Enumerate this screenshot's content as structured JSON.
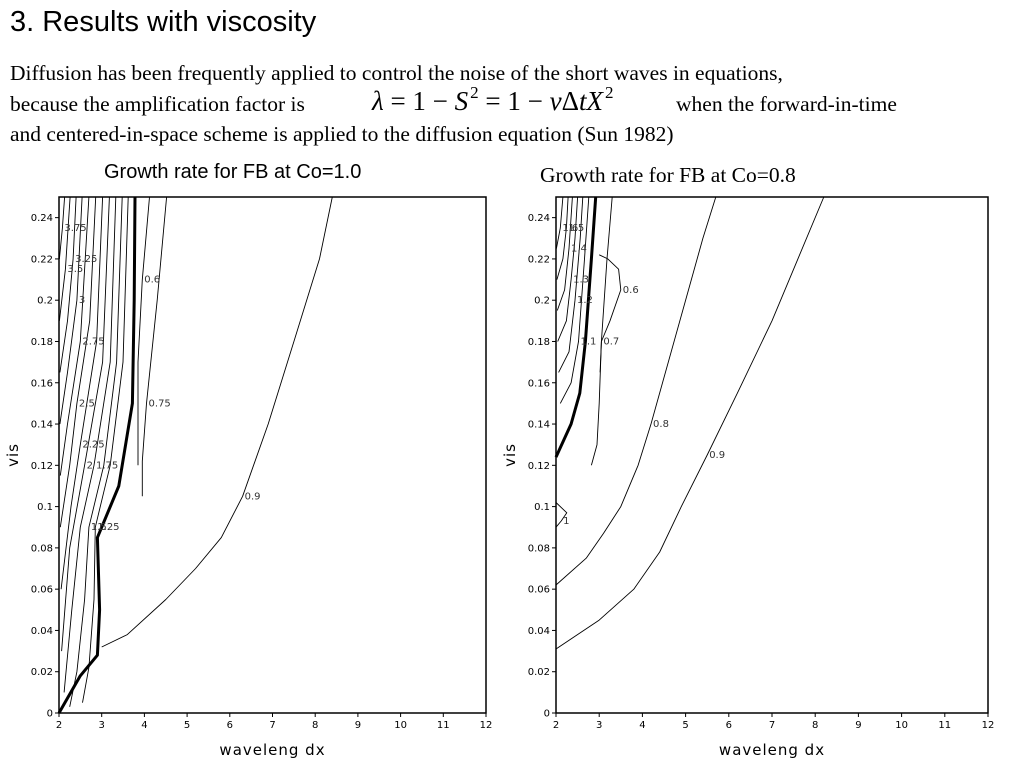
{
  "slide": {
    "title": "3. Results with viscosity",
    "line1": "Diffusion has been frequently applied to control the noise of the short waves in equations,",
    "line2_pre": "because the amplification factor is",
    "line2_post": "when the forward-in-time",
    "line3": "and centered-in-space scheme is applied to the diffusion equation (Sun 1982)",
    "formula": {
      "lambda": "λ",
      "eq1": " = 1 − ",
      "S": "S",
      "sq1": "2",
      "eq2": " = 1 − ",
      "nu": "ν",
      "delta": "Δ",
      "tX": "tX",
      "sq2": "2"
    }
  },
  "chart_data": [
    {
      "type": "contour",
      "title": "Growth rate for FB at Co=1.0",
      "xlabel": "waveleng  dx",
      "ylabel": "vis",
      "xlim": [
        2,
        12
      ],
      "ylim": [
        0,
        0.25
      ],
      "xticks": [
        2,
        3,
        4,
        5,
        6,
        7,
        8,
        9,
        10,
        11,
        12
      ],
      "yticks": [
        0,
        0.02,
        0.04,
        0.06,
        0.08,
        0.1,
        0.12,
        0.14,
        0.16,
        0.18,
        0.2,
        0.22,
        0.24
      ],
      "contours": [
        {
          "label": "",
          "bold": true,
          "points": [
            [
              2,
              0
            ],
            [
              2.5,
              0.018
            ],
            [
              2.9,
              0.028
            ],
            [
              2.95,
              0.05
            ],
            [
              2.9,
              0.085
            ],
            [
              3.4,
              0.11
            ],
            [
              3.72,
              0.15
            ],
            [
              3.76,
              0.2
            ],
            [
              3.78,
              0.25
            ]
          ]
        },
        {
          "label": "0.9",
          "bold": false,
          "points": [
            [
              3.0,
              0.032
            ],
            [
              3.6,
              0.038
            ],
            [
              4.5,
              0.055
            ],
            [
              5.2,
              0.07
            ],
            [
              5.8,
              0.085
            ],
            [
              6.3,
              0.105
            ],
            [
              6.9,
              0.14
            ],
            [
              7.5,
              0.18
            ],
            [
              8.1,
              0.22
            ],
            [
              8.4,
              0.25
            ]
          ]
        },
        {
          "label": "0.75",
          "bold": false,
          "points": [
            [
              3.95,
              0.105
            ],
            [
              3.95,
              0.122
            ],
            [
              4.05,
              0.15
            ],
            [
              4.3,
              0.2
            ],
            [
              4.52,
              0.25
            ]
          ]
        },
        {
          "label": "0.6",
          "bold": false,
          "points": [
            [
              3.85,
              0.12
            ],
            [
              3.85,
              0.17
            ],
            [
              3.95,
              0.21
            ],
            [
              4.12,
              0.25
            ]
          ]
        },
        {
          "label": "1.25",
          "bold": false,
          "points": [
            [
              2.55,
              0.005
            ],
            [
              2.7,
              0.022
            ],
            [
              2.82,
              0.055
            ],
            [
              2.85,
              0.09
            ],
            [
              3.2,
              0.12
            ],
            [
              3.5,
              0.17
            ],
            [
              3.62,
              0.25
            ]
          ]
        },
        {
          "label": "1.5",
          "bold": false,
          "points": [
            [
              2.25,
              0.003
            ],
            [
              2.42,
              0.02
            ],
            [
              2.6,
              0.055
            ],
            [
              2.7,
              0.09
            ],
            [
              3.05,
              0.12
            ],
            [
              3.35,
              0.17
            ],
            [
              3.48,
              0.25
            ]
          ]
        },
        {
          "label": "1.75",
          "bold": false,
          "points": [
            [
              2.12,
              0.01
            ],
            [
              2.3,
              0.05
            ],
            [
              2.5,
              0.09
            ],
            [
              2.82,
              0.12
            ],
            [
              3.2,
              0.17
            ],
            [
              3.33,
              0.25
            ]
          ]
        },
        {
          "label": "2",
          "bold": false,
          "points": [
            [
              2.06,
              0.03
            ],
            [
              2.25,
              0.08
            ],
            [
              2.6,
              0.12
            ],
            [
              3.02,
              0.17
            ],
            [
              3.18,
              0.25
            ]
          ]
        },
        {
          "label": "2.25",
          "bold": false,
          "points": [
            [
              2.05,
              0.06
            ],
            [
              2.28,
              0.1
            ],
            [
              2.5,
              0.13
            ],
            [
              2.88,
              0.18
            ],
            [
              3.02,
              0.25
            ]
          ]
        },
        {
          "label": "2.5",
          "bold": false,
          "points": [
            [
              2.03,
              0.09
            ],
            [
              2.25,
              0.12
            ],
            [
              2.42,
              0.15
            ],
            [
              2.72,
              0.19
            ],
            [
              2.86,
              0.25
            ]
          ]
        },
        {
          "label": "2.75",
          "bold": false,
          "points": [
            [
              2.03,
              0.115
            ],
            [
              2.2,
              0.14
            ],
            [
              2.5,
              0.18
            ],
            [
              2.7,
              0.25
            ]
          ]
        },
        {
          "label": "3",
          "bold": false,
          "points": [
            [
              2.02,
              0.14
            ],
            [
              2.2,
              0.165
            ],
            [
              2.42,
              0.2
            ],
            [
              2.54,
              0.25
            ]
          ]
        },
        {
          "label": "3.25",
          "bold": false,
          "points": [
            [
              2.02,
              0.165
            ],
            [
              2.2,
              0.19
            ],
            [
              2.33,
              0.22
            ],
            [
              2.4,
              0.25
            ]
          ]
        },
        {
          "label": "3.5",
          "bold": false,
          "points": [
            [
              2.01,
              0.19
            ],
            [
              2.15,
              0.215
            ],
            [
              2.26,
              0.25
            ]
          ]
        },
        {
          "label": "3.75",
          "bold": false,
          "points": [
            [
              2.01,
              0.22
            ],
            [
              2.08,
              0.235
            ],
            [
              2.13,
              0.25
            ]
          ]
        }
      ]
    },
    {
      "type": "contour",
      "title": "Growth rate for FB at Co=0.8",
      "xlabel": "waveleng  dx",
      "ylabel": "vis",
      "xlim": [
        2,
        12
      ],
      "ylim": [
        0,
        0.25
      ],
      "xticks": [
        2,
        3,
        4,
        5,
        6,
        7,
        8,
        9,
        10,
        11,
        12
      ],
      "yticks": [
        0,
        0.02,
        0.04,
        0.06,
        0.08,
        0.1,
        0.12,
        0.14,
        0.16,
        0.18,
        0.2,
        0.22,
        0.24
      ],
      "contours": [
        {
          "label": "",
          "bold": true,
          "points": [
            [
              2,
              0.124
            ],
            [
              2.35,
              0.14
            ],
            [
              2.55,
              0.155
            ],
            [
              2.68,
              0.18
            ],
            [
              2.82,
              0.22
            ],
            [
              2.92,
              0.25
            ]
          ]
        },
        {
          "label": "0.9",
          "bold": false,
          "points": [
            [
              2,
              0.031
            ],
            [
              3.0,
              0.045
            ],
            [
              3.8,
              0.06
            ],
            [
              4.4,
              0.078
            ],
            [
              4.9,
              0.1
            ],
            [
              5.5,
              0.125
            ],
            [
              6.2,
              0.155
            ],
            [
              7.0,
              0.19
            ],
            [
              7.6,
              0.22
            ],
            [
              8.2,
              0.25
            ]
          ]
        },
        {
          "label": "0.8",
          "bold": false,
          "points": [
            [
              2,
              0.062
            ],
            [
              2.7,
              0.075
            ],
            [
              3.1,
              0.087
            ],
            [
              3.5,
              0.1
            ],
            [
              3.9,
              0.12
            ],
            [
              4.2,
              0.14
            ],
            [
              4.6,
              0.17
            ],
            [
              5.0,
              0.2
            ],
            [
              5.4,
              0.23
            ],
            [
              5.7,
              0.25
            ]
          ]
        },
        {
          "label": "0.7",
          "bold": false,
          "points": [
            [
              2.82,
              0.12
            ],
            [
              2.95,
              0.13
            ],
            [
              3.0,
              0.15
            ],
            [
              3.05,
              0.18
            ],
            [
              3.18,
              0.22
            ],
            [
              3.3,
              0.25
            ]
          ]
        },
        {
          "label": "0.6",
          "bold": false,
          "points": [
            [
              3.02,
              0.165
            ],
            [
              3.05,
              0.18
            ],
            [
              3.25,
              0.19
            ],
            [
              3.5,
              0.205
            ],
            [
              3.45,
              0.215
            ],
            [
              3.2,
              0.22
            ],
            [
              3.0,
              0.222
            ]
          ]
        },
        {
          "label": "1",
          "bold": false,
          "points": [
            [
              2,
              0.102
            ],
            [
              2.25,
              0.097
            ],
            [
              2.12,
              0.093
            ],
            [
              2,
              0.09
            ]
          ]
        },
        {
          "label": "1.1",
          "bold": false,
          "points": [
            [
              2.1,
              0.15
            ],
            [
              2.35,
              0.16
            ],
            [
              2.52,
              0.18
            ],
            [
              2.66,
              0.22
            ],
            [
              2.76,
              0.25
            ]
          ]
        },
        {
          "label": "1.2",
          "bold": false,
          "points": [
            [
              2.06,
              0.165
            ],
            [
              2.3,
              0.175
            ],
            [
              2.44,
              0.2
            ],
            [
              2.56,
              0.23
            ],
            [
              2.62,
              0.25
            ]
          ]
        },
        {
          "label": "1.3",
          "bold": false,
          "points": [
            [
              2.04,
              0.18
            ],
            [
              2.24,
              0.19
            ],
            [
              2.35,
              0.21
            ],
            [
              2.44,
              0.23
            ],
            [
              2.5,
              0.25
            ]
          ]
        },
        {
          "label": "1.4",
          "bold": false,
          "points": [
            [
              2.03,
              0.195
            ],
            [
              2.2,
              0.205
            ],
            [
              2.3,
              0.225
            ],
            [
              2.38,
              0.25
            ]
          ]
        },
        {
          "label": "1.5",
          "bold": false,
          "points": [
            [
              2.02,
              0.21
            ],
            [
              2.16,
              0.22
            ],
            [
              2.24,
              0.235
            ],
            [
              2.28,
              0.25
            ]
          ]
        },
        {
          "label": "1.6",
          "bold": false,
          "points": [
            [
              2.01,
              0.225
            ],
            [
              2.1,
              0.235
            ],
            [
              2.16,
              0.25
            ]
          ]
        }
      ]
    }
  ]
}
